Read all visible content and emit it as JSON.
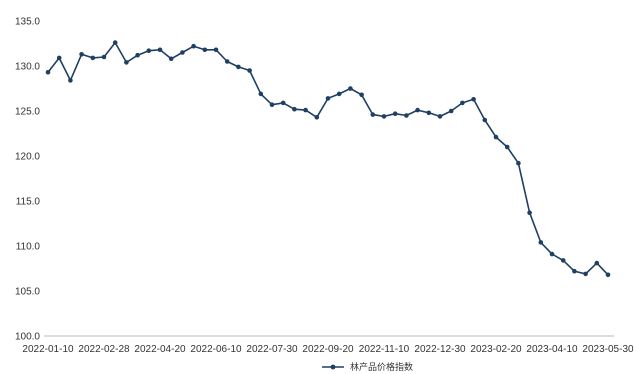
{
  "chart_data": {
    "type": "line",
    "title": "",
    "xlabel": "",
    "ylabel": "",
    "ylim": [
      100,
      135
    ],
    "y_ticks": [
      "100.0",
      "105.0",
      "110.0",
      "115.0",
      "120.0",
      "125.0",
      "130.0",
      "135.0"
    ],
    "x_tick_labels": [
      "2022-01-10",
      "2022-02-28",
      "2022-04-20",
      "2022-06-10",
      "2022-07-30",
      "2022-09-20",
      "2022-11-10",
      "2022-12-30",
      "2023-02-20",
      "2023-04-10",
      "2023-05-30"
    ],
    "grid": false,
    "legend_position": "bottom",
    "colors": {
      "series": "#1f3f63"
    },
    "series": [
      {
        "name": "林产品价格指数",
        "values": [
          129.3,
          130.9,
          128.4,
          131.3,
          130.9,
          131.0,
          132.6,
          130.4,
          131.2,
          131.7,
          131.8,
          130.8,
          131.5,
          132.2,
          131.8,
          131.8,
          130.5,
          129.9,
          129.5,
          126.9,
          125.7,
          125.9,
          125.2,
          125.1,
          124.3,
          126.4,
          126.9,
          127.5,
          126.8,
          124.6,
          124.4,
          124.7,
          124.5,
          125.1,
          124.8,
          124.4,
          125.0,
          125.9,
          126.3,
          124.0,
          122.1,
          121.0,
          119.2,
          113.7,
          110.4,
          109.1,
          108.4,
          107.2,
          106.9,
          108.1,
          106.8
        ]
      }
    ]
  }
}
